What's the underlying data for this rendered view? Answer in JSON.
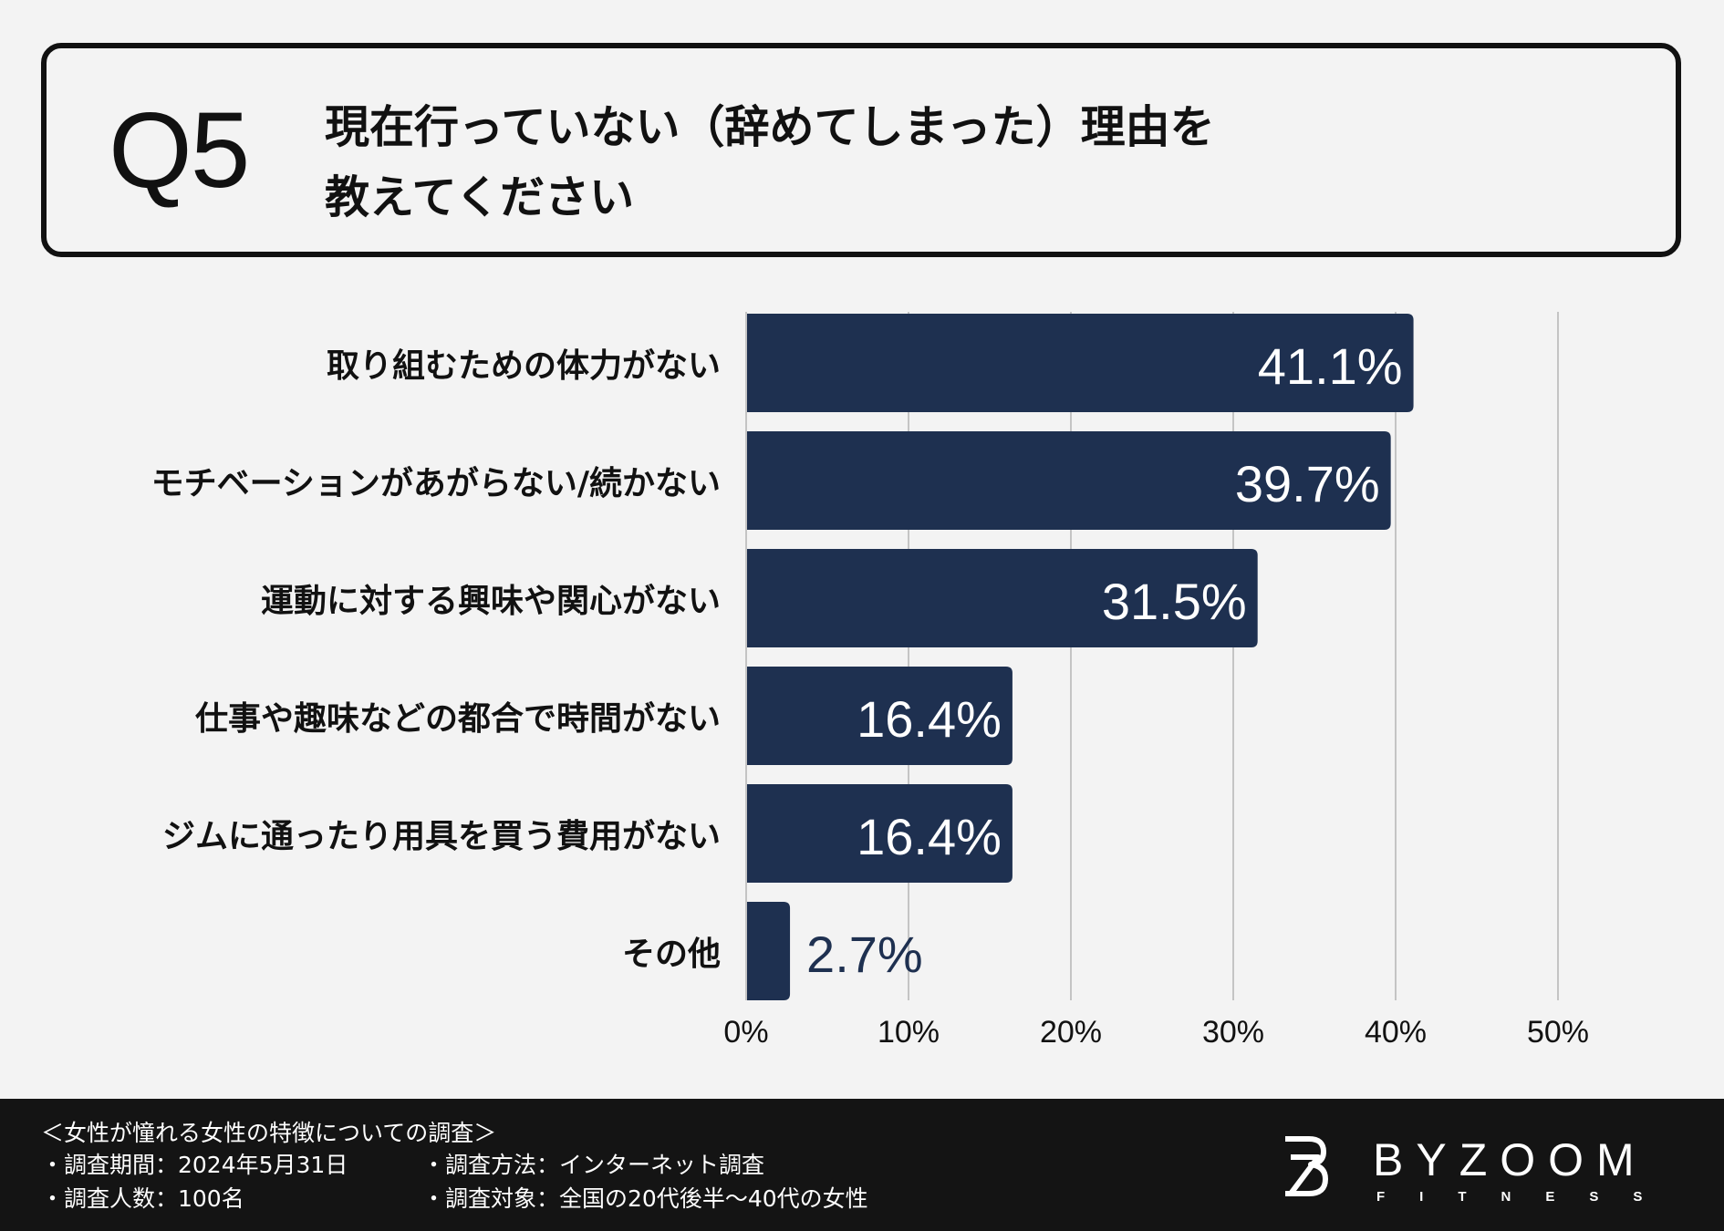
{
  "question": {
    "number": "Q5",
    "line1": "現在行っていない（辞めてしまった）理由を",
    "line2": "教えてください"
  },
  "chart_data": {
    "type": "bar",
    "orientation": "horizontal",
    "categories": [
      "取り組むための体力がない",
      "モチベーションがあがらない/続かない",
      "運動に対する興味や関心がない",
      "仕事や趣味などの都合で時間がない",
      "ジムに通ったり用具を買う費用がない",
      "その他"
    ],
    "values": [
      41.1,
      39.7,
      31.5,
      16.4,
      16.4,
      2.7
    ],
    "value_labels": [
      "41.1%",
      "39.7%",
      "31.5%",
      "16.4%",
      "16.4%",
      "2.7%"
    ],
    "xlim": [
      0,
      50
    ],
    "ticks": [
      0,
      10,
      20,
      30,
      40,
      50
    ],
    "tick_labels": [
      "0%",
      "10%",
      "20%",
      "30%",
      "40%",
      "50%"
    ],
    "grid": "vertical",
    "bar_color": "#1e3050",
    "label_inside_color": "#ffffff",
    "label_outside_color": "#1e3050"
  },
  "footer": {
    "survey_title": "＜女性が憧れる女性の特徴についての調査＞",
    "period": "・調査期間：2024年5月31日",
    "sample": "・調査人数：100名",
    "method": "・調査方法：インターネット調査",
    "target": "・調査対象：全国の20代後半〜40代の女性"
  },
  "brand": {
    "name": "BYZOOM",
    "sub": "FITNESS"
  }
}
